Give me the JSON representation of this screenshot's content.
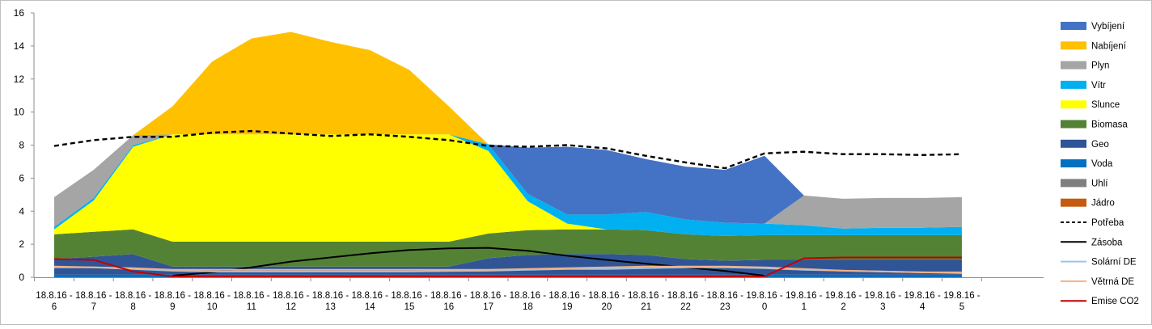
{
  "chart_data": {
    "type": "area",
    "title": "",
    "xlabel": "",
    "ylabel": "",
    "ylim": [
      0,
      16
    ],
    "yticks": [
      0,
      2,
      4,
      6,
      8,
      10,
      12,
      14,
      16
    ],
    "grid": false,
    "legend_position": "right",
    "categories": [
      [
        "18.8.16 -",
        "6"
      ],
      [
        "18.8.16 -",
        "7"
      ],
      [
        "18.8.16 -",
        "8"
      ],
      [
        "18.8.16 -",
        "9"
      ],
      [
        "18.8.16 -",
        "10"
      ],
      [
        "18.8.16 -",
        "11"
      ],
      [
        "18.8.16 -",
        "12"
      ],
      [
        "18.8.16 -",
        "13"
      ],
      [
        "18.8.16 -",
        "14"
      ],
      [
        "18.8.16 -",
        "15"
      ],
      [
        "18.8.16 -",
        "16"
      ],
      [
        "18.8.16 -",
        "17"
      ],
      [
        "18.8.16 -",
        "18"
      ],
      [
        "18.8.16 -",
        "19"
      ],
      [
        "18.8.16 -",
        "20"
      ],
      [
        "18.8.16 -",
        "21"
      ],
      [
        "18.8.16 -",
        "22"
      ],
      [
        "18.8.16 -",
        "23"
      ],
      [
        "19.8.16 -",
        "0"
      ],
      [
        "19.8.16 -",
        "1"
      ],
      [
        "19.8.16 -",
        "2"
      ],
      [
        "19.8.16 -",
        "3"
      ],
      [
        "19.8.16 -",
        "4"
      ],
      [
        "19.8.16 -",
        "5"
      ]
    ],
    "stacked_areas": [
      {
        "name": "Jádro",
        "color": "#C55A11",
        "values": [
          0,
          0,
          0,
          0,
          0,
          0,
          0,
          0,
          0,
          0,
          0,
          0,
          0,
          0,
          0,
          0,
          0,
          0,
          0,
          0,
          0,
          0,
          0,
          0
        ]
      },
      {
        "name": "Uhlí",
        "color": "#7F7F7F",
        "values": [
          0,
          0,
          0,
          0,
          0,
          0,
          0,
          0,
          0,
          0,
          0,
          0,
          0,
          0,
          0,
          0,
          0,
          0,
          0,
          0,
          0,
          0,
          0,
          0
        ]
      },
      {
        "name": "Voda",
        "color": "#0070C0",
        "values": [
          0.15,
          0.15,
          0.15,
          0.15,
          0.15,
          0.15,
          0.15,
          0.15,
          0.15,
          0.15,
          0.15,
          0.15,
          0.15,
          0.15,
          0.15,
          0.15,
          0.15,
          0.15,
          0.15,
          0.15,
          0.15,
          0.15,
          0.15,
          0.15
        ]
      },
      {
        "name": "Geo",
        "color": "#2F5597",
        "values": [
          0.95,
          1.1,
          1.25,
          0.5,
          0.5,
          0.5,
          0.5,
          0.5,
          0.5,
          0.5,
          0.5,
          1.0,
          1.2,
          1.25,
          1.25,
          1.2,
          0.95,
          0.85,
          0.9,
          0.9,
          0.9,
          0.9,
          0.9,
          0.9
        ]
      },
      {
        "name": "Biomasa",
        "color": "#548235",
        "values": [
          1.5,
          1.5,
          1.5,
          1.5,
          1.5,
          1.5,
          1.5,
          1.5,
          1.5,
          1.5,
          1.5,
          1.5,
          1.5,
          1.5,
          1.5,
          1.5,
          1.5,
          1.5,
          1.5,
          1.5,
          1.5,
          1.5,
          1.5,
          1.5
        ]
      },
      {
        "name": "Slunce",
        "color": "#FFFF00",
        "values": [
          0.3,
          1.9,
          5.0,
          6.5,
          6.5,
          6.5,
          6.5,
          6.5,
          6.5,
          6.5,
          6.5,
          5.0,
          1.75,
          0.35,
          0,
          0,
          0,
          0,
          0,
          0,
          0,
          0,
          0,
          0
        ]
      },
      {
        "name": "Vítr",
        "color": "#00B0F0",
        "values": [
          0.15,
          0.15,
          0.1,
          0,
          0,
          0,
          0,
          0,
          0,
          0,
          0,
          0.4,
          0.45,
          0.55,
          0.9,
          1.1,
          0.9,
          0.8,
          0.7,
          0.6,
          0.4,
          0.45,
          0.45,
          0.5
        ]
      },
      {
        "name": "Plyn",
        "color": "#A5A5A5",
        "values": [
          1.8,
          1.7,
          0.6,
          0,
          0,
          0,
          0,
          0,
          0,
          0,
          0,
          0,
          0,
          0,
          0,
          0,
          0,
          0,
          0,
          1.8,
          1.8,
          1.8,
          1.8,
          1.8
        ]
      },
      {
        "name": "Nabíjení",
        "color": "#FFC000",
        "values": [
          0,
          0,
          0,
          1.7,
          4.4,
          5.8,
          6.2,
          5.6,
          5.1,
          3.9,
          1.7,
          0,
          0,
          0,
          0,
          0,
          0,
          0,
          0,
          0,
          0,
          0,
          0,
          0
        ]
      },
      {
        "name": "Vybíjení",
        "color": "#4472C4",
        "values": [
          0,
          0,
          0,
          0,
          0,
          0,
          0,
          0,
          0,
          0,
          0,
          0,
          2.8,
          4.1,
          3.9,
          3.2,
          3.2,
          3.2,
          4.1,
          0,
          0,
          0,
          0,
          0
        ]
      }
    ],
    "lines": [
      {
        "name": "Potřeba",
        "color": "#000000",
        "style": "dashed",
        "values": [
          7.95,
          8.3,
          8.5,
          8.5,
          8.75,
          8.85,
          8.7,
          8.55,
          8.65,
          8.5,
          8.3,
          7.95,
          7.9,
          8.0,
          7.8,
          7.35,
          6.95,
          6.6,
          7.5,
          7.6,
          7.45,
          7.45,
          7.4,
          7.45
        ]
      },
      {
        "name": "Zásoba",
        "color": "#000000",
        "style": "solid",
        "values": [
          null,
          null,
          null,
          0.1,
          0.3,
          0.6,
          0.95,
          1.2,
          1.45,
          1.65,
          1.75,
          1.78,
          1.6,
          1.3,
          1.05,
          0.82,
          0.6,
          0.38,
          0.1,
          null,
          null,
          null,
          null,
          null
        ]
      },
      {
        "name": "Solární DE",
        "color": "#9DC3E6",
        "style": "solid",
        "values": [
          0.6,
          0.6,
          0.5,
          0.4,
          0.35,
          0.35,
          0.35,
          0.35,
          0.35,
          0.35,
          0.38,
          0.4,
          0.45,
          0.5,
          0.5,
          0.55,
          0.6,
          0.6,
          0.55,
          0.45,
          0.4,
          0.35,
          0.3,
          0.25
        ]
      },
      {
        "name": "Větrná DE",
        "color": "#F4B183",
        "style": "solid",
        "values": [
          0.65,
          0.6,
          0.55,
          0.45,
          0.45,
          0.45,
          0.45,
          0.45,
          0.45,
          0.45,
          0.45,
          0.45,
          0.5,
          0.55,
          0.6,
          0.65,
          0.65,
          0.65,
          0.6,
          0.5,
          0.4,
          0.35,
          0.3,
          0.3
        ]
      },
      {
        "name": "Emise CO2",
        "color": "#C00000",
        "style": "solid",
        "values": [
          1.1,
          1.05,
          0.35,
          0.05,
          0.05,
          0.05,
          0.05,
          0.05,
          0.05,
          0.05,
          0.05,
          0.05,
          0.05,
          0.05,
          0.05,
          0.05,
          0.05,
          0.05,
          0.05,
          1.15,
          1.2,
          1.2,
          1.2,
          1.2
        ]
      }
    ],
    "legend": [
      {
        "label": "Vybíjení",
        "kind": "area",
        "color": "#4472C4"
      },
      {
        "label": "Nabíjení",
        "kind": "area",
        "color": "#FFC000"
      },
      {
        "label": "Plyn",
        "kind": "area",
        "color": "#A5A5A5"
      },
      {
        "label": "Vítr",
        "kind": "area",
        "color": "#00B0F0"
      },
      {
        "label": "Slunce",
        "kind": "area",
        "color": "#FFFF00"
      },
      {
        "label": "Biomasa",
        "kind": "area",
        "color": "#548235"
      },
      {
        "label": "Geo",
        "kind": "area",
        "color": "#2F5597"
      },
      {
        "label": "Voda",
        "kind": "area",
        "color": "#0070C0"
      },
      {
        "label": "Uhlí",
        "kind": "area",
        "color": "#7F7F7F"
      },
      {
        "label": "Jádro",
        "kind": "area",
        "color": "#C55A11"
      },
      {
        "label": "Potřeba",
        "kind": "dashed-line",
        "color": "#000000"
      },
      {
        "label": "Zásoba",
        "kind": "line",
        "color": "#000000"
      },
      {
        "label": "Solární DE",
        "kind": "line",
        "color": "#9DC3E6"
      },
      {
        "label": "Větrná DE",
        "kind": "line",
        "color": "#F4B183"
      },
      {
        "label": "Emise CO2",
        "kind": "line",
        "color": "#C00000"
      }
    ]
  }
}
